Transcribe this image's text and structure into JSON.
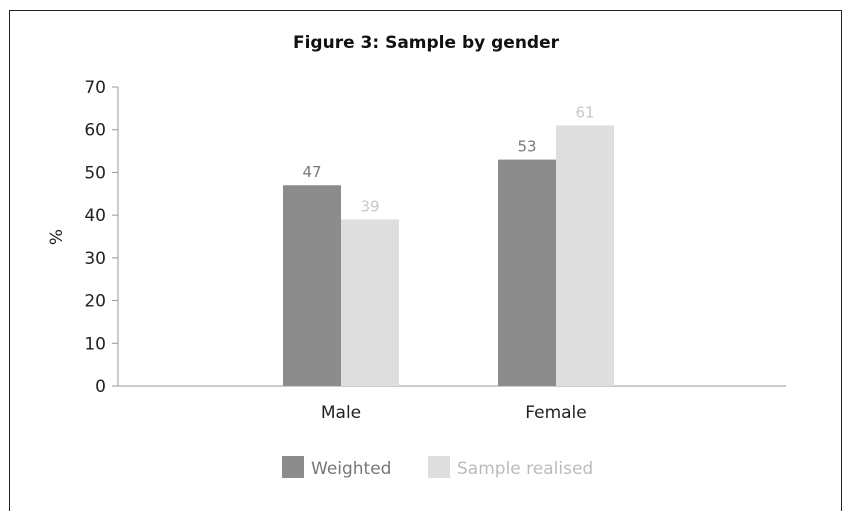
{
  "chart_data": {
    "type": "bar",
    "title": "Figure 3: Sample by gender",
    "ylabel": "%",
    "xlabel": "",
    "categories": [
      "Male",
      "Female"
    ],
    "series": [
      {
        "name": "Weighted",
        "values": [
          47,
          53
        ],
        "color": "#8c8c8c",
        "label_color": "#7a7a7a"
      },
      {
        "name": "Sample realised",
        "values": [
          39,
          61
        ],
        "color": "#dedede",
        "label_color": "#c8c8c8"
      }
    ],
    "ylim": [
      0,
      70
    ],
    "yticks": [
      0,
      10,
      20,
      30,
      40,
      50,
      60,
      70
    ],
    "grid": false,
    "legend_position": "bottom"
  }
}
